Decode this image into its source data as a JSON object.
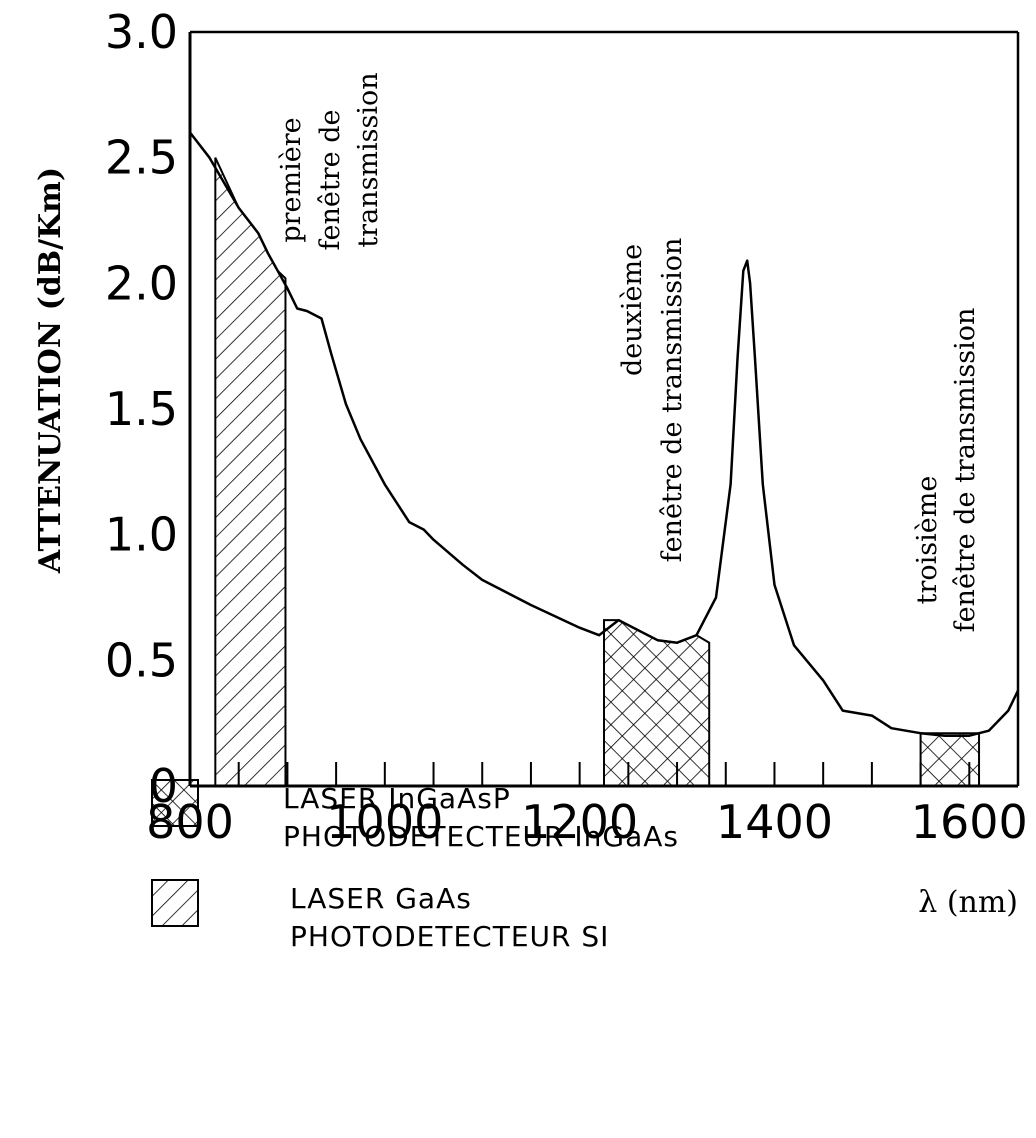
{
  "chart_data": {
    "type": "line",
    "title": "",
    "xlabel": "λ (nm)",
    "ylabel": "ATTENUATION (dB/Km)",
    "xlim": [
      800,
      1650
    ],
    "ylim": [
      0,
      3.0
    ],
    "xticks": [
      800,
      1000,
      1200,
      1400,
      1600
    ],
    "xtick_labels": [
      "800",
      "1000",
      "1200",
      "1400",
      "1600"
    ],
    "yticks": [
      0,
      0.5,
      1.0,
      1.5,
      2.0,
      2.5,
      3.0
    ],
    "ytick_labels": [
      "0",
      "0.5",
      "1.0",
      "1.5",
      "2.0",
      "2.5",
      "3.0"
    ],
    "grid": false,
    "series": [
      {
        "x": [
          800,
          820,
          850,
          870,
          880,
          890,
          900,
          910,
          920,
          935,
          945,
          960,
          975,
          1000,
          1025,
          1040,
          1050,
          1080,
          1100,
          1150,
          1200,
          1220,
          1240,
          1260,
          1280,
          1300,
          1320,
          1340,
          1355,
          1362,
          1368,
          1372,
          1375,
          1380,
          1388,
          1400,
          1420,
          1450,
          1470,
          1500,
          1520,
          1550,
          1575,
          1600,
          1620,
          1640,
          1650
        ],
        "y": [
          2.6,
          2.5,
          2.3,
          2.2,
          2.12,
          2.05,
          1.98,
          1.9,
          1.89,
          1.86,
          1.72,
          1.52,
          1.38,
          1.2,
          1.05,
          1.02,
          0.98,
          0.88,
          0.82,
          0.72,
          0.63,
          0.6,
          0.66,
          0.62,
          0.58,
          0.57,
          0.6,
          0.75,
          1.2,
          1.7,
          2.05,
          2.09,
          2.0,
          1.7,
          1.2,
          0.8,
          0.56,
          0.42,
          0.3,
          0.28,
          0.23,
          0.21,
          0.2,
          0.2,
          0.22,
          0.3,
          0.38
        ]
      }
    ],
    "bands": [
      {
        "x0": 826,
        "x1": 898,
        "top": 2.5,
        "pattern": "hatch"
      },
      {
        "x0": 1225,
        "x1": 1333,
        "top": 0.66,
        "top2": 0.57,
        "pattern": "crosshatch"
      },
      {
        "x0": 1550,
        "x1": 1610,
        "top": 0.21,
        "pattern": "crosshatch"
      }
    ],
    "annotations": [
      {
        "lines": [
          "première",
          "fenêtre de",
          "transmission"
        ]
      },
      {
        "lines": [
          "deuxième",
          "fenêtre de transmission"
        ]
      },
      {
        "lines": [
          "troisième",
          "fenêtre de transmission"
        ]
      }
    ],
    "legend": [
      {
        "pattern": "crosshatch",
        "lines": [
          "LASER InGaAsP",
          "PHOTODETECTEUR InGaAs"
        ]
      },
      {
        "pattern": "hatch",
        "lines": [
          "LASER GaAs",
          "PHOTODETECTEUR SI"
        ]
      }
    ],
    "legend_position": "bottom-left"
  }
}
